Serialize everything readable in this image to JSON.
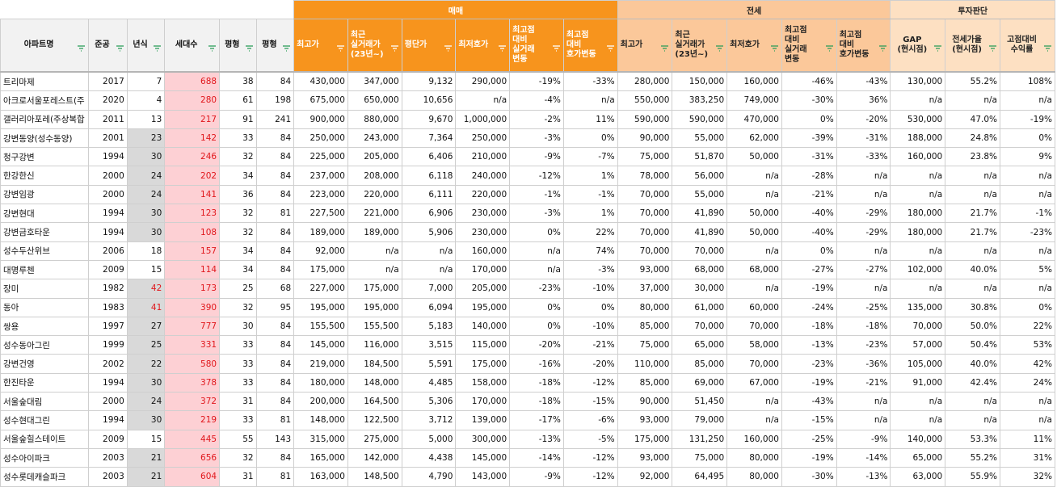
{
  "groups": {
    "sale": "매매",
    "jeonse": "전세",
    "invest": "투자판단"
  },
  "headers": {
    "name": "아파트명",
    "built": "준공",
    "age": "년식",
    "households": "세대수",
    "pyeong1": "평형",
    "pyeong2": "평형",
    "sale_max": "최고가",
    "sale_recent": "최근\n실거래가\n(23년~)",
    "sale_perpyeong": "평단가",
    "sale_min": "최저호가",
    "sale_vs_deal": "최고점\n대비\n실거래\n변동",
    "sale_vs_ask": "최고점\n대비\n호가변동",
    "jeonse_max": "최고가",
    "jeonse_recent": "최근\n실거래가\n(23년~)",
    "jeonse_min": "최저호가",
    "jeonse_vs_deal": "최고점\n대비\n실거래\n변동",
    "jeonse_vs_ask": "최고점\n대비\n호가변동",
    "gap": "GAP\n(현시점)",
    "jeonse_ratio": "전세가율\n(현시점)",
    "return": "고점대비\n수익률"
  },
  "rows": [
    {
      "name": "트리마제",
      "built": "2017",
      "age": "7",
      "hh": "688",
      "p1": "38",
      "p2": "84",
      "smax": "430,000",
      "srec": "347,000",
      "spp": "9,132",
      "smin": "290,000",
      "sd": "-19%",
      "sa": "-33%",
      "jmax": "280,000",
      "jrec": "150,000",
      "jmin": "160,000",
      "jd": "-46%",
      "ja": "-43%",
      "gap": "130,000",
      "jr": "55.2%",
      "ret": "108%"
    },
    {
      "name": "아크로서울포레스트(주",
      "built": "2020",
      "age": "4",
      "hh": "280",
      "p1": "61",
      "p2": "198",
      "smax": "675,000",
      "srec": "650,000",
      "spp": "10,656",
      "smin": "n/a",
      "sd": "-4%",
      "sa": "n/a",
      "jmax": "550,000",
      "jrec": "383,250",
      "jmin": "749,000",
      "jd": "-30%",
      "ja": "36%",
      "gap": "n/a",
      "jr": "n/a",
      "ret": "n/a"
    },
    {
      "name": "갤러리아포레(주상복합",
      "built": "2011",
      "age": "13",
      "hh": "217",
      "p1": "91",
      "p2": "241",
      "smax": "900,000",
      "srec": "880,000",
      "spp": "9,670",
      "smin": "1,000,000",
      "sd": "-2%",
      "sa": "11%",
      "jmax": "590,000",
      "jrec": "590,000",
      "jmin": "470,000",
      "jd": "0%",
      "ja": "-20%",
      "gap": "530,000",
      "jr": "47.0%",
      "ret": "-19%"
    },
    {
      "name": "강변동양(성수동양)",
      "built": "2001",
      "age": "23",
      "hh": "142",
      "p1": "33",
      "p2": "84",
      "smax": "250,000",
      "srec": "243,000",
      "spp": "7,364",
      "smin": "250,000",
      "sd": "-3%",
      "sa": "0%",
      "jmax": "90,000",
      "jrec": "55,000",
      "jmin": "62,000",
      "jd": "-39%",
      "ja": "-31%",
      "gap": "188,000",
      "jr": "24.8%",
      "ret": "0%"
    },
    {
      "name": "청구강변",
      "built": "1994",
      "age": "30",
      "hh": "246",
      "p1": "32",
      "p2": "84",
      "smax": "225,000",
      "srec": "205,000",
      "spp": "6,406",
      "smin": "210,000",
      "sd": "-9%",
      "sa": "-7%",
      "jmax": "75,000",
      "jrec": "51,870",
      "jmin": "50,000",
      "jd": "-31%",
      "ja": "-33%",
      "gap": "160,000",
      "jr": "23.8%",
      "ret": "9%"
    },
    {
      "name": "한강한신",
      "built": "2000",
      "age": "24",
      "hh": "202",
      "p1": "34",
      "p2": "84",
      "smax": "237,000",
      "srec": "208,000",
      "spp": "6,118",
      "smin": "240,000",
      "sd": "-12%",
      "sa": "1%",
      "jmax": "78,000",
      "jrec": "56,000",
      "jmin": "n/a",
      "jd": "-28%",
      "ja": "n/a",
      "gap": "n/a",
      "jr": "n/a",
      "ret": "n/a"
    },
    {
      "name": "강변임광",
      "built": "2000",
      "age": "24",
      "hh": "141",
      "p1": "36",
      "p2": "84",
      "smax": "223,000",
      "srec": "220,000",
      "spp": "6,111",
      "smin": "220,000",
      "sd": "-1%",
      "sa": "-1%",
      "jmax": "70,000",
      "jrec": "55,000",
      "jmin": "n/a",
      "jd": "-21%",
      "ja": "n/a",
      "gap": "n/a",
      "jr": "n/a",
      "ret": "n/a"
    },
    {
      "name": "강변현대",
      "built": "1994",
      "age": "30",
      "hh": "123",
      "p1": "32",
      "p2": "81",
      "smax": "227,500",
      "srec": "221,000",
      "spp": "6,906",
      "smin": "230,000",
      "sd": "-3%",
      "sa": "1%",
      "jmax": "70,000",
      "jrec": "41,890",
      "jmin": "50,000",
      "jd": "-40%",
      "ja": "-29%",
      "gap": "180,000",
      "jr": "21.7%",
      "ret": "-1%"
    },
    {
      "name": "강변금호타운",
      "built": "1994",
      "age": "30",
      "hh": "108",
      "p1": "32",
      "p2": "84",
      "smax": "189,000",
      "srec": "189,000",
      "spp": "5,906",
      "smin": "230,000",
      "sd": "0%",
      "sa": "22%",
      "jmax": "70,000",
      "jrec": "41,890",
      "jmin": "50,000",
      "jd": "-40%",
      "ja": "-29%",
      "gap": "180,000",
      "jr": "21.7%",
      "ret": "-23%"
    },
    {
      "name": "성수두산위브",
      "built": "2006",
      "age": "18",
      "hh": "157",
      "p1": "34",
      "p2": "84",
      "smax": "92,000",
      "srec": "n/a",
      "spp": "n/a",
      "smin": "160,000",
      "sd": "n/a",
      "sa": "74%",
      "jmax": "70,000",
      "jrec": "70,000",
      "jmin": "n/a",
      "jd": "0%",
      "ja": "n/a",
      "gap": "n/a",
      "jr": "n/a",
      "ret": "n/a"
    },
    {
      "name": "대명루첸",
      "built": "2009",
      "age": "15",
      "hh": "114",
      "p1": "34",
      "p2": "84",
      "smax": "175,000",
      "srec": "n/a",
      "spp": "n/a",
      "smin": "170,000",
      "sd": "n/a",
      "sa": "-3%",
      "jmax": "93,000",
      "jrec": "68,000",
      "jmin": "68,000",
      "jd": "-27%",
      "ja": "-27%",
      "gap": "102,000",
      "jr": "40.0%",
      "ret": "5%"
    },
    {
      "name": "장미",
      "built": "1982",
      "age": "42",
      "hh": "173",
      "p1": "25",
      "p2": "68",
      "smax": "227,000",
      "srec": "175,000",
      "spp": "7,000",
      "smin": "205,000",
      "sd": "-23%",
      "sa": "-10%",
      "jmax": "37,000",
      "jrec": "30,000",
      "jmin": "n/a",
      "jd": "-19%",
      "ja": "n/a",
      "gap": "n/a",
      "jr": "n/a",
      "ret": "n/a"
    },
    {
      "name": "동아",
      "built": "1983",
      "age": "41",
      "hh": "390",
      "p1": "32",
      "p2": "95",
      "smax": "195,000",
      "srec": "195,000",
      "spp": "6,094",
      "smin": "195,000",
      "sd": "0%",
      "sa": "0%",
      "jmax": "80,000",
      "jrec": "61,000",
      "jmin": "60,000",
      "jd": "-24%",
      "ja": "-25%",
      "gap": "135,000",
      "jr": "30.8%",
      "ret": "0%"
    },
    {
      "name": "쌍용",
      "built": "1997",
      "age": "27",
      "hh": "777",
      "p1": "30",
      "p2": "84",
      "smax": "155,500",
      "srec": "155,500",
      "spp": "5,183",
      "smin": "140,000",
      "sd": "0%",
      "sa": "-10%",
      "jmax": "85,000",
      "jrec": "70,000",
      "jmin": "70,000",
      "jd": "-18%",
      "ja": "-18%",
      "gap": "70,000",
      "jr": "50.0%",
      "ret": "22%"
    },
    {
      "name": "성수동아그린",
      "built": "1999",
      "age": "25",
      "hh": "331",
      "p1": "33",
      "p2": "84",
      "smax": "145,000",
      "srec": "116,000",
      "spp": "3,515",
      "smin": "115,000",
      "sd": "-20%",
      "sa": "-21%",
      "jmax": "75,000",
      "jrec": "65,000",
      "jmin": "58,000",
      "jd": "-13%",
      "ja": "-23%",
      "gap": "57,000",
      "jr": "50.4%",
      "ret": "53%"
    },
    {
      "name": "강변건영",
      "built": "2002",
      "age": "22",
      "hh": "580",
      "p1": "33",
      "p2": "84",
      "smax": "219,000",
      "srec": "184,500",
      "spp": "5,591",
      "smin": "175,000",
      "sd": "-16%",
      "sa": "-20%",
      "jmax": "110,000",
      "jrec": "85,000",
      "jmin": "70,000",
      "jd": "-23%",
      "ja": "-36%",
      "gap": "105,000",
      "jr": "40.0%",
      "ret": "42%"
    },
    {
      "name": "한진타운",
      "built": "1994",
      "age": "30",
      "hh": "378",
      "p1": "33",
      "p2": "84",
      "smax": "180,000",
      "srec": "148,000",
      "spp": "4,485",
      "smin": "158,000",
      "sd": "-18%",
      "sa": "-12%",
      "jmax": "85,000",
      "jrec": "69,000",
      "jmin": "67,000",
      "jd": "-19%",
      "ja": "-21%",
      "gap": "91,000",
      "jr": "42.4%",
      "ret": "24%"
    },
    {
      "name": "서울숲대림",
      "built": "2000",
      "age": "24",
      "hh": "372",
      "p1": "31",
      "p2": "84",
      "smax": "200,000",
      "srec": "164,500",
      "spp": "5,306",
      "smin": "170,000",
      "sd": "-18%",
      "sa": "-15%",
      "jmax": "90,000",
      "jrec": "51,450",
      "jmin": "n/a",
      "jd": "-43%",
      "ja": "n/a",
      "gap": "n/a",
      "jr": "n/a",
      "ret": "n/a"
    },
    {
      "name": "성수현대그린",
      "built": "1994",
      "age": "30",
      "hh": "219",
      "p1": "33",
      "p2": "81",
      "smax": "148,000",
      "srec": "122,500",
      "spp": "3,712",
      "smin": "139,000",
      "sd": "-17%",
      "sa": "-6%",
      "jmax": "93,000",
      "jrec": "79,000",
      "jmin": "n/a",
      "jd": "-15%",
      "ja": "n/a",
      "gap": "n/a",
      "jr": "n/a",
      "ret": "n/a"
    },
    {
      "name": "서울숲힐스테이트",
      "built": "2009",
      "age": "15",
      "hh": "445",
      "p1": "55",
      "p2": "143",
      "smax": "315,000",
      "srec": "275,000",
      "spp": "5,000",
      "smin": "300,000",
      "sd": "-13%",
      "sa": "-5%",
      "jmax": "175,000",
      "jrec": "131,250",
      "jmin": "160,000",
      "jd": "-25%",
      "ja": "-9%",
      "gap": "140,000",
      "jr": "53.3%",
      "ret": "11%"
    },
    {
      "name": "성수아이파크",
      "built": "2003",
      "age": "21",
      "hh": "656",
      "p1": "32",
      "p2": "84",
      "smax": "165,000",
      "srec": "142,000",
      "spp": "4,438",
      "smin": "145,000",
      "sd": "-14%",
      "sa": "-12%",
      "jmax": "93,000",
      "jrec": "75,000",
      "jmin": "80,000",
      "jd": "-19%",
      "ja": "-14%",
      "gap": "65,000",
      "jr": "55.2%",
      "ret": "31%"
    },
    {
      "name": "성수롯데캐슬파크",
      "built": "2003",
      "age": "21",
      "hh": "604",
      "p1": "31",
      "p2": "81",
      "smax": "163,000",
      "srec": "148,500",
      "spp": "4,790",
      "smin": "143,000",
      "sd": "-9%",
      "sa": "-12%",
      "jmax": "92,000",
      "jrec": "64,495",
      "jmin": "80,000",
      "jd": "-30%",
      "ja": "-13%",
      "gap": "63,000",
      "jr": "55.9%",
      "ret": "32%"
    }
  ]
}
